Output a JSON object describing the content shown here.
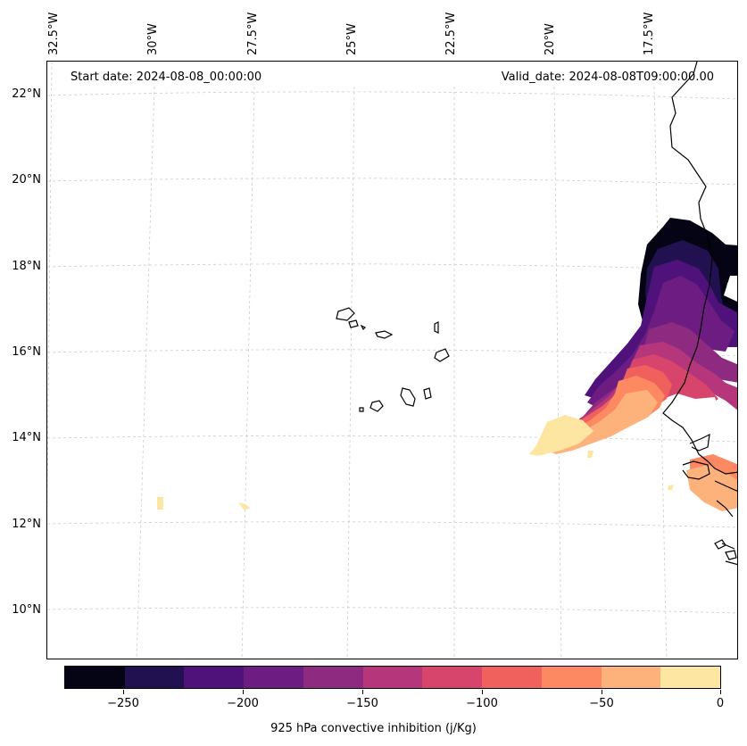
{
  "map": {
    "start_date": "Start date: 2024-08-08_00:00:00",
    "valid_date": "Valid_date: 2024-08-08T09:00:00.00",
    "lat_labels": [
      "22°N",
      "20°N",
      "18°N",
      "16°N",
      "14°N",
      "12°N",
      "10°N"
    ],
    "lon_labels": [
      "32.5°W",
      "30°W",
      "27.5°W",
      "25°W",
      "22.5°W",
      "20°W",
      "17.5°W"
    ],
    "variable": "925 hPa convective inhibition",
    "units": "j/Kg"
  },
  "colorbar": {
    "title": "925 hPa convective inhibition (j/Kg)",
    "tick_labels": [
      "−250",
      "−200",
      "−150",
      "−100",
      "−50",
      "0"
    ],
    "levels": [
      -275,
      -250,
      -225,
      -200,
      -175,
      -150,
      -125,
      -100,
      -75,
      -50,
      -25,
      0
    ],
    "colors": [
      "#050415",
      "#221150",
      "#4f127b",
      "#6d1d81",
      "#8f2a81",
      "#b5367a",
      "#d8456c",
      "#f0605d",
      "#fc8961",
      "#feb27b",
      "#fde5a2"
    ]
  },
  "colors": {
    "gridline": "#cccccc",
    "coastline": "#000000"
  }
}
